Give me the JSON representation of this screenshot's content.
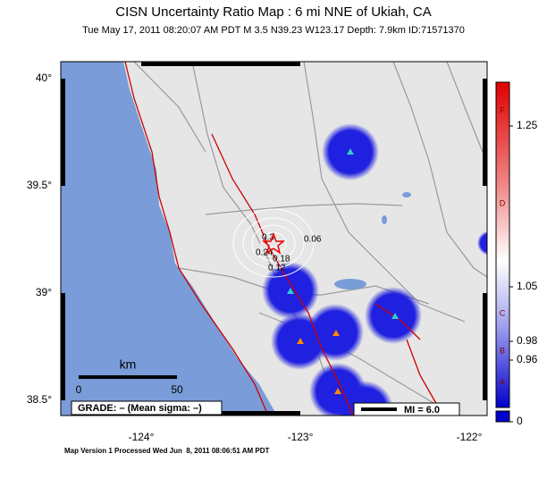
{
  "header": {
    "title": "CISN Uncertainty Ratio Map : 6 mi NNE of Ukiah, CA",
    "subtitle": "Tue May 17, 2011 08:20:07 AM PDT   M 3.5   N39.23 W123.17   Depth: 7.9km   ID:71571370"
  },
  "map": {
    "lat_labels": [
      "40°",
      "39.5°",
      "39°",
      "38.5°"
    ],
    "lon_labels": [
      "-124°",
      "-123°",
      "-122°"
    ],
    "contour_labels": [
      "0.3",
      "0.24",
      "0.18",
      "0.12",
      "0.06"
    ],
    "scale": {
      "unit": "km",
      "start": "0",
      "end": "50"
    },
    "grade": "GRADE: – (Mean sigma: –)",
    "mi_legend": "MI = 6.0"
  },
  "colorbar": {
    "grades": [
      "F",
      "D",
      "C",
      "B",
      "A"
    ],
    "values": [
      "1.25",
      "1.05",
      "0.98",
      "0.96",
      "0"
    ]
  },
  "footer": "Map Version 1 Processed Wed Jun  8, 2011 08:06:51 AM PDT"
}
